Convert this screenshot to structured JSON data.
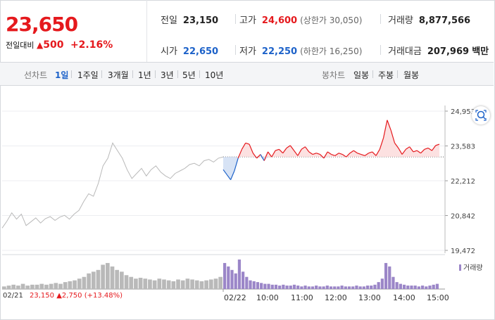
{
  "header": {
    "price": "23,650",
    "change_label": "전일대비",
    "change_arrow": "▲",
    "change_amount": "500",
    "change_pct": "+2.16%"
  },
  "stats": {
    "prev_close_label": "전일",
    "prev_close": "23,150",
    "high_label": "고가",
    "high": "24,600",
    "upper_limit": "(상한가 30,050)",
    "volume_label": "거래량",
    "volume": "8,877,566",
    "open_label": "시가",
    "open": "22,650",
    "low_label": "저가",
    "low": "22,250",
    "lower_limit": "(하한가 16,250)",
    "value_label": "거래대금",
    "value": "207,969",
    "value_unit": "백만"
  },
  "tabs": {
    "line_label": "선차트",
    "periods": [
      "1일",
      "1주일",
      "3개월",
      "1년",
      "3년",
      "5년",
      "10년"
    ],
    "active": "1일",
    "candle_label": "봉차트",
    "candles": [
      "일봉",
      "주봉",
      "월봉"
    ]
  },
  "colors": {
    "up": "#e5191d",
    "down": "#1d62c9",
    "history": "#b9b9b9",
    "volume_today": "#9b86c8"
  },
  "icons": {
    "zoom": "zoom-icon"
  },
  "chart_data": {
    "type": "line",
    "y_ticks": [
      "24,953",
      "23,583",
      "22,212",
      "20,842",
      "19,472"
    ],
    "y_tick_values": [
      24953,
      23583,
      22212,
      20842,
      19472
    ],
    "ylim": [
      19472,
      24953
    ],
    "reference_price": 23150,
    "x_ticks": [
      "02/21",
      "02/22",
      "10:00",
      "11:00",
      "12:00",
      "13:00",
      "14:00",
      "15:00"
    ],
    "volume_legend": "거래량",
    "prev_day_summary": {
      "date": "02/21",
      "close": "23,150",
      "arrow": "▲",
      "change": "2,750",
      "pct": "(+13.48%)"
    },
    "history_series": {
      "name": "",
      "values": [
        20350,
        20620,
        20950,
        20700,
        20900,
        20450,
        20600,
        20750,
        20550,
        20720,
        20800,
        20650,
        20780,
        20850,
        20700,
        20900,
        21050,
        21400,
        21700,
        21600,
        22100,
        22800,
        23100,
        23700,
        23400,
        23100,
        22650,
        22300,
        22500,
        22700,
        22400,
        22650,
        22800,
        22550,
        22400,
        22300,
        22500,
        22600,
        22700,
        22850,
        22900,
        22800,
        23000,
        23050,
        22950,
        23100,
        23150
      ]
    },
    "today_series": {
      "name": "",
      "values": [
        22650,
        22450,
        22250,
        22600,
        23100,
        23450,
        23700,
        23650,
        23300,
        23100,
        23250,
        23000,
        23350,
        23150,
        23400,
        23450,
        23300,
        23500,
        23600,
        23400,
        23200,
        23450,
        23550,
        23350,
        23250,
        23300,
        23250,
        23100,
        23350,
        23250,
        23200,
        23300,
        23250,
        23150,
        23300,
        23400,
        23300,
        23250,
        23200,
        23300,
        23350,
        23200,
        23450,
        23900,
        24600,
        24200,
        23700,
        23500,
        23250,
        23450,
        23550,
        23350,
        23400,
        23300,
        23450,
        23500,
        23400,
        23600,
        23650
      ]
    },
    "history_volume": [
      3,
      4,
      5,
      4,
      6,
      4,
      5,
      5,
      6,
      5,
      6,
      7,
      6,
      8,
      9,
      10,
      12,
      14,
      18,
      20,
      22,
      28,
      30,
      26,
      22,
      20,
      16,
      14,
      12,
      13,
      12,
      11,
      10,
      12,
      11,
      10,
      9,
      11,
      10,
      12,
      11,
      10,
      9,
      10,
      11,
      12,
      14
    ],
    "today_volume": [
      30,
      26,
      22,
      18,
      34,
      20,
      14,
      10,
      9,
      8,
      7,
      6,
      6,
      5,
      5,
      4,
      5,
      4,
      4,
      5,
      4,
      3,
      4,
      3,
      3,
      4,
      3,
      3,
      4,
      3,
      3,
      3,
      4,
      3,
      3,
      3,
      4,
      3,
      3,
      4,
      4,
      5,
      8,
      12,
      30,
      26,
      14,
      8,
      6,
      5,
      4,
      4,
      4,
      3,
      4,
      3,
      4,
      5,
      6
    ]
  }
}
